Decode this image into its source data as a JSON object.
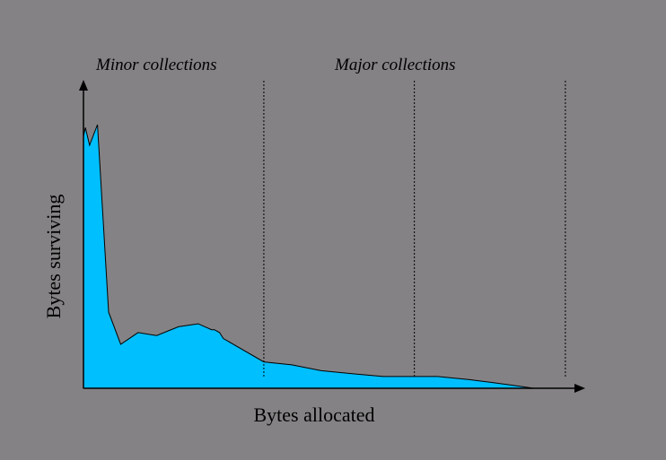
{
  "chart_data": {
    "type": "area",
    "title": "",
    "xlabel": "Bytes allocated",
    "ylabel": "Bytes surviving",
    "annotations": [
      "Minor collections",
      "Major collections"
    ],
    "x_markers": [
      0.387,
      0.71,
      1.034
    ],
    "xlim": [
      0,
      1.04
    ],
    "ylim": [
      0,
      1.05
    ],
    "grid": false,
    "fill_color": "#00BFFF",
    "background_color": "#848284",
    "line_color": "#000000",
    "series": [
      {
        "x": [
          0.0,
          0.004,
          0.013,
          0.03,
          0.054,
          0.08,
          0.117,
          0.157,
          0.204,
          0.246,
          0.275,
          0.281,
          0.292,
          0.3,
          0.387,
          0.447,
          0.51,
          0.576,
          0.643,
          0.7,
          0.76,
          0.826,
          0.876,
          0.922,
          0.966,
          0.999,
          1.034
        ],
        "y": [
          0.86,
          0.89,
          0.83,
          0.9,
          0.26,
          0.15,
          0.19,
          0.18,
          0.21,
          0.22,
          0.2,
          0.2,
          0.19,
          0.17,
          0.09,
          0.08,
          0.06,
          0.05,
          0.04,
          0.04,
          0.04,
          0.03,
          0.02,
          0.01,
          0.0,
          0.0,
          0.0
        ]
      }
    ]
  }
}
